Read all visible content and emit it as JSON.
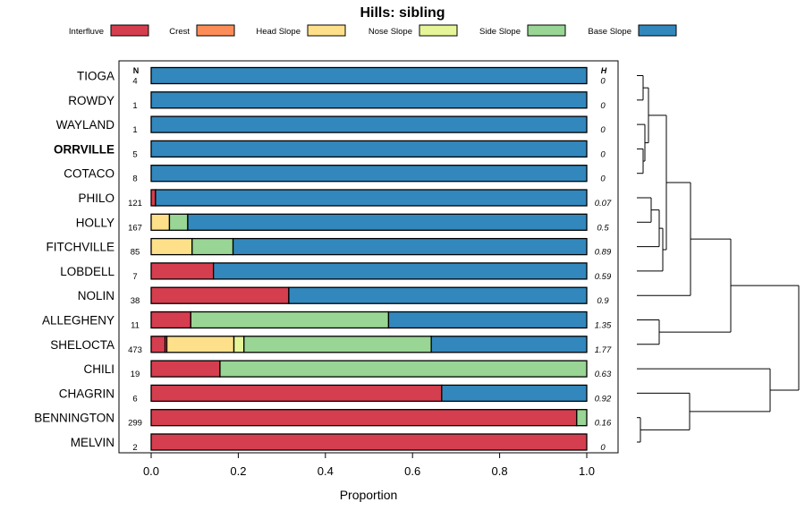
{
  "chart_data": {
    "type": "bar",
    "stacked": true,
    "orientation": "horizontal",
    "title": "Hills: sibling",
    "xlabel": "Proportion",
    "xlim": [
      0,
      1
    ],
    "xticks": [
      "0.0",
      "0.2",
      "0.4",
      "0.6",
      "0.8",
      "1.0"
    ],
    "n_header": "N",
    "h_header": "H",
    "legend": [
      {
        "name": "Interfluve",
        "color": "#D53E4F"
      },
      {
        "name": "Crest",
        "color": "#FC8D59"
      },
      {
        "name": "Head Slope",
        "color": "#FEE08B"
      },
      {
        "name": "Nose Slope",
        "color": "#E6F598"
      },
      {
        "name": "Side Slope",
        "color": "#99D594"
      },
      {
        "name": "Base Slope",
        "color": "#3288BD"
      }
    ],
    "rows": [
      {
        "name": "TIOGA",
        "bold": false,
        "n": "4",
        "h": "0",
        "values": [
          0,
          0,
          0,
          0,
          0,
          1
        ]
      },
      {
        "name": "ROWDY",
        "bold": false,
        "n": "1",
        "h": "0",
        "values": [
          0,
          0,
          0,
          0,
          0,
          1
        ]
      },
      {
        "name": "WAYLAND",
        "bold": false,
        "n": "1",
        "h": "0",
        "values": [
          0,
          0,
          0,
          0,
          0,
          1
        ]
      },
      {
        "name": "ORRVILLE",
        "bold": true,
        "n": "5",
        "h": "0",
        "values": [
          0,
          0,
          0,
          0,
          0,
          1
        ]
      },
      {
        "name": "COTACO",
        "bold": false,
        "n": "8",
        "h": "0",
        "values": [
          0,
          0,
          0,
          0,
          0,
          1
        ]
      },
      {
        "name": "PHILO",
        "bold": false,
        "n": "121",
        "h": "0.07",
        "values": [
          0.01,
          0,
          0,
          0,
          0,
          0.99
        ]
      },
      {
        "name": "HOLLY",
        "bold": false,
        "n": "167",
        "h": "0.5",
        "values": [
          0,
          0,
          0.042,
          0,
          0.042,
          0.916
        ]
      },
      {
        "name": "FITCHVILLE",
        "bold": false,
        "n": "85",
        "h": "0.89",
        "values": [
          0,
          0,
          0.094,
          0,
          0.094,
          0.812
        ]
      },
      {
        "name": "LOBDELL",
        "bold": false,
        "n": "7",
        "h": "0.59",
        "values": [
          0.143,
          0,
          0,
          0,
          0,
          0.857
        ]
      },
      {
        "name": "NOLIN",
        "bold": false,
        "n": "38",
        "h": "0.9",
        "values": [
          0.316,
          0,
          0,
          0,
          0,
          0.684
        ]
      },
      {
        "name": "ALLEGHENY",
        "bold": false,
        "n": "11",
        "h": "1.35",
        "values": [
          0.091,
          0,
          0,
          0,
          0.454,
          0.455
        ]
      },
      {
        "name": "SHELOCTA",
        "bold": false,
        "n": "473",
        "h": "1.77",
        "values": [
          0.032,
          0.004,
          0.154,
          0.023,
          0.43,
          0.357
        ]
      },
      {
        "name": "CHILI",
        "bold": false,
        "n": "19",
        "h": "0.63",
        "values": [
          0.158,
          0,
          0,
          0,
          0.842,
          0
        ]
      },
      {
        "name": "CHAGRIN",
        "bold": false,
        "n": "6",
        "h": "0.92",
        "values": [
          0.667,
          0,
          0,
          0,
          0,
          0.333
        ]
      },
      {
        "name": "BENNINGTON",
        "bold": false,
        "n": "299",
        "h": "0.16",
        "values": [
          0.977,
          0,
          0,
          0,
          0.023,
          0
        ]
      },
      {
        "name": "MELVIN",
        "bold": false,
        "n": "2",
        "h": "0",
        "values": [
          1,
          0,
          0,
          0,
          0,
          0
        ]
      }
    ],
    "dendrogram": {
      "leaf_order": [
        "TIOGA",
        "ROWDY",
        "WAYLAND",
        "ORRVILLE",
        "COTACO",
        "PHILO",
        "HOLLY",
        "FITCHVILLE",
        "LOBDELL",
        "NOLIN",
        "ALLEGHENY",
        "SHELOCTA",
        "CHILI",
        "CHAGRIN",
        "BENNINGTON",
        "MELVIN"
      ],
      "tree": [
        [
          [
            [
              [
                "TIOGA",
                "ROWDY"
              ],
              [
                "WAYLAND",
                [
                  "ORRVILLE",
                  "COTACO"
                ]
              ]
            ],
            [
              [
                [
                  "PHILO",
                  "HOLLY"
                ],
                "FITCHVILLE"
              ],
              "LOBDELL"
            ]
          ],
          "NOLIN"
        ],
        [
          [
            [
              "ALLEGHENY",
              "SHELOCTA"
            ]
          ],
          [
            [
              "CHILI",
              [
                "CHAGRIN",
                [
                  "BENNINGTON",
                  "MELVIN"
                ]
              ]
            ]
          ]
        ]
      ]
    }
  }
}
